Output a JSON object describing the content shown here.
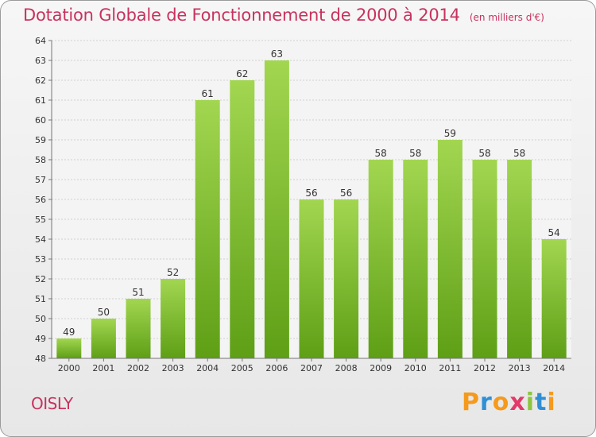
{
  "chart_data": {
    "type": "bar",
    "title": "Dotation Globale de Fonctionnement de 2000 à 2014",
    "unit_label": "(en milliers d'€)",
    "categories": [
      "2000",
      "2001",
      "2002",
      "2003",
      "2004",
      "2005",
      "2006",
      "2007",
      "2008",
      "2009",
      "2010",
      "2011",
      "2012",
      "2013",
      "2014"
    ],
    "values": [
      49,
      50,
      51,
      52,
      61,
      62,
      63,
      56,
      56,
      58,
      58,
      59,
      58,
      58,
      54
    ],
    "ylim": [
      48,
      64
    ],
    "yticks": [
      48,
      49,
      50,
      51,
      52,
      53,
      54,
      55,
      56,
      57,
      58,
      59,
      60,
      61,
      62,
      63,
      64
    ],
    "xlabel": "",
    "ylabel": "",
    "grid": true,
    "bar_color": "#7cbf2e"
  },
  "footer": {
    "town": "OISLY",
    "logo_letters": [
      "P",
      "r",
      "o",
      "x",
      "i",
      "t",
      "i"
    ],
    "logo_colors": [
      "#f59a1c",
      "#2f8fd6",
      "#f59a1c",
      "#e23a6a",
      "#8cc63f",
      "#2f8fd6",
      "#f59a1c"
    ]
  }
}
